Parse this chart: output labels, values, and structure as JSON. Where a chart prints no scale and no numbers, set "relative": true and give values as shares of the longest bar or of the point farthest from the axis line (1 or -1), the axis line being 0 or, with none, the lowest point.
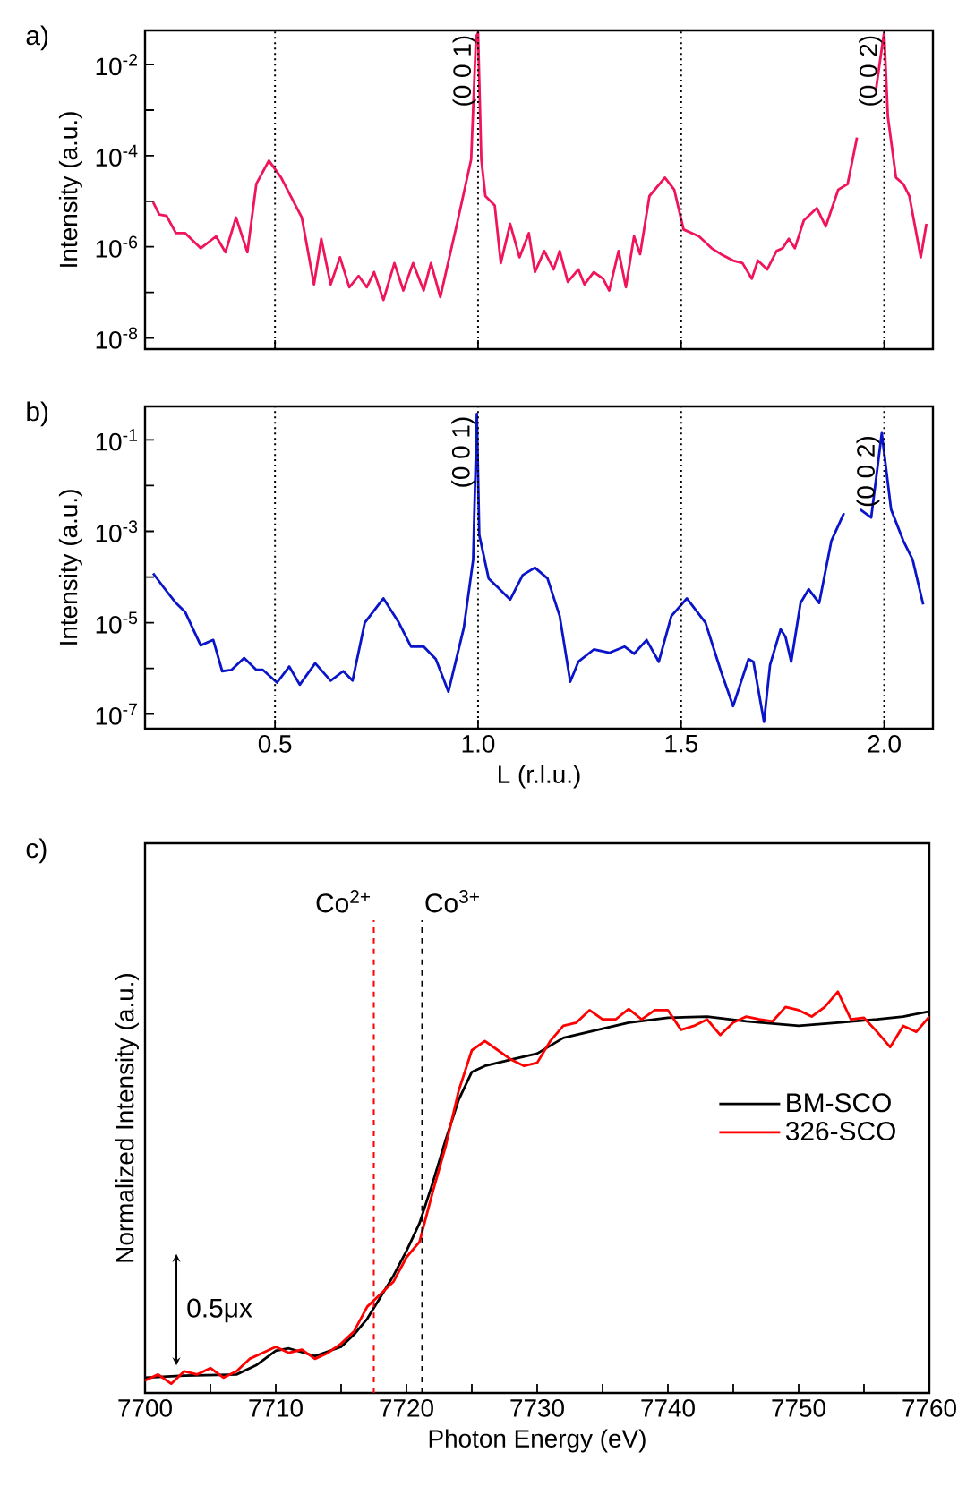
{
  "chart_data": [
    {
      "type": "line",
      "title": "a)",
      "ylabel": "Intensity (a.u.)",
      "log": "y",
      "tick_labels": "y",
      "xlim": [
        0.18,
        2.12
      ],
      "xticks": [
        0.5,
        1,
        1.5,
        2
      ],
      "ylim": [
        5.7e-09,
        0.056
      ],
      "yticks": [
        {
          "value": 0.01,
          "label": "10$^{-2}$"
        },
        {
          "value": 0.001,
          "label": null
        },
        {
          "value": 0.0001,
          "label": "10$^{-4}$"
        },
        {
          "value": 1e-05,
          "label": null
        },
        {
          "value": 1e-06,
          "label": "10$^{-6}$"
        },
        {
          "value": 1e-07,
          "label": null
        },
        {
          "value": 1e-08,
          "label": "10$^{-8}$"
        }
      ],
      "x": [
        0.2,
        0.215,
        0.233,
        0.256,
        0.279,
        0.317,
        0.355,
        0.378,
        0.404,
        0.432,
        0.454,
        0.485,
        0.515,
        0.566,
        0.596,
        0.614,
        0.637,
        0.66,
        0.683,
        0.706,
        0.726,
        0.744,
        0.767,
        0.794,
        0.816,
        0.84,
        0.866,
        0.884,
        0.907,
        0.95,
        0.983,
        0.995,
        1.0,
        1.008,
        1.018,
        1.041,
        1.056,
        1.079,
        1.102,
        1.125,
        1.14,
        1.163,
        1.186,
        1.201,
        1.221,
        1.247,
        1.262,
        1.285,
        1.308,
        1.323,
        1.346,
        1.364,
        1.384,
        1.399,
        1.422,
        1.46,
        1.483,
        1.506,
        1.544,
        1.575,
        1.598,
        1.628,
        1.651,
        1.674,
        1.689,
        1.712,
        1.735,
        1.75,
        1.765,
        1.78,
        1.802,
        1.834,
        1.856,
        1.887,
        1.91,
        1.933,
        1.956,
        1.979,
        1.998,
        2.0,
        2.009,
        2.029,
        2.047,
        2.062,
        2.09,
        2.104
      ],
      "series": [
        {
          "color": "#f0145a",
          "values": [
            9.5e-06,
            5.1e-06,
            4.8e-06,
            2e-06,
            2e-06,
            9.3e-07,
            1.7e-06,
            7.6e-07,
            4.4e-06,
            7.6e-07,
            2.4e-05,
            7.8e-05,
            3.3e-05,
            4.4e-06,
            1.5e-07,
            1.5e-06,
            1.5e-07,
            5.9e-07,
            1.3e-07,
            2.3e-07,
            1.3e-07,
            2.8e-07,
            6.8e-08,
            4.4e-07,
            1.1e-07,
            4.4e-07,
            1.1e-07,
            4.4e-07,
            7.9e-08,
            3.8e-06,
            8.3e-05,
            0.04,
            0.05,
            8.3e-05,
            1.3e-05,
            8.1e-06,
            4.4e-07,
            3.2e-06,
            5.9e-07,
            2e-06,
            2.8e-07,
            8.1e-07,
            3.2e-07,
            8.1e-07,
            1.7e-07,
            3.2e-07,
            1.5e-07,
            2.8e-07,
            2e-07,
            1.1e-07,
            8.1e-07,
            1.3e-07,
            1.7e-06,
            6.9e-07,
            1.3e-05,
            3.3e-05,
            1.8e-05,
            2.4e-06,
            1.7e-06,
            9.3e-07,
            6.9e-07,
            5e-07,
            4.4e-07,
            2e-07,
            5e-07,
            3.2e-07,
            8.1e-07,
            9.3e-07,
            1.5e-06,
            9.3e-07,
            3.8e-06,
            7.1e-06,
            2.8e-06,
            1.8e-05,
            2.4e-05,
            0.00025,
            null,
            0.0025,
            0.04,
            0.05,
            0.00072,
            3.3e-05,
            2.4e-05,
            1.3e-05,
            5.9e-07,
            3.2e-06
          ]
        }
      ],
      "ref_lines": [
        {
          "axis": "x",
          "value": 0.5,
          "color": "#000000",
          "line_style": "dotted"
        },
        {
          "axis": "x",
          "value": 1,
          "color": "#000000",
          "line_style": "dotted"
        },
        {
          "axis": "x",
          "value": 1.5,
          "color": "#000000",
          "line_style": "dotted"
        },
        {
          "axis": "x",
          "value": 2,
          "color": "#000000",
          "line_style": "dotted"
        }
      ],
      "annotations": [
        {
          "text": "(0 0 1)",
          "x": 1.0,
          "y": 0.05
        },
        {
          "text": "(0 0 2)",
          "x": 2.0,
          "y": 0.05
        }
      ]
    },
    {
      "type": "line",
      "title": "b)",
      "xlabel": "L (r.l.u.)",
      "ylabel": "Intensity (a.u.)",
      "log": "y",
      "xlim": [
        0.18,
        2.12
      ],
      "xticks": [
        0.5,
        {
          "value": 1,
          "label": "1.0"
        },
        1.5,
        {
          "value": 2,
          "label": "2.0"
        }
      ],
      "ylim": [
        4.8e-08,
        0.54
      ],
      "yticks": [
        {
          "value": 0.1,
          "label": "10$^{-1}$"
        },
        {
          "value": 0.01,
          "label": null
        },
        {
          "value": 0.001,
          "label": "10$^{-3}$"
        },
        {
          "value": 0.0001,
          "label": null
        },
        {
          "value": 1e-05,
          "label": "10$^{-5}$"
        },
        {
          "value": 1e-06,
          "label": null
        },
        {
          "value": 1e-07,
          "label": "10$^{-7}$"
        }
      ],
      "x": [
        0.2,
        0.226,
        0.256,
        0.279,
        0.317,
        0.348,
        0.37,
        0.393,
        0.424,
        0.454,
        0.47,
        0.505,
        0.535,
        0.561,
        0.599,
        0.637,
        0.668,
        0.691,
        0.721,
        0.767,
        0.805,
        0.835,
        0.866,
        0.896,
        0.927,
        0.965,
        0.988,
        0.997,
        1.003,
        1.026,
        1.049,
        1.079,
        1.11,
        1.14,
        1.171,
        1.201,
        1.227,
        1.247,
        1.285,
        1.323,
        1.361,
        1.384,
        1.415,
        1.445,
        1.476,
        1.514,
        1.56,
        1.598,
        1.628,
        1.666,
        1.678,
        1.704,
        1.719,
        1.745,
        1.757,
        1.771,
        1.794,
        1.814,
        1.84,
        1.87,
        1.901,
        1.921,
        1.941,
        1.968,
        1.994,
        2.017,
        2.047,
        2.07,
        2.096
      ],
      "series": [
        {
          "color": "#0a14c8",
          "values": [
            0.00012,
            5.9e-05,
            2.7e-05,
            1.7e-05,
            3.2e-06,
            4.2e-06,
            8.7e-07,
            9.3e-07,
            1.7e-06,
            9.3e-07,
            9.3e-07,
            4.9e-07,
            1.1e-06,
            4.4e-07,
            1.3e-06,
            5.4e-07,
            8.7e-07,
            5.4e-07,
            1e-05,
            3.4e-05,
            1e-05,
            3e-06,
            3e-06,
            1.6e-06,
            3.1e-07,
            7.8e-06,
            0.00024,
            0.37,
            0.00083,
            9.3e-05,
            5.9e-05,
            3.2e-05,
            0.00011,
            0.00016,
            9.3e-05,
            1.4e-05,
            5.1e-07,
            1.4e-06,
            2.6e-06,
            2.2e-06,
            3e-06,
            2.1e-06,
            4.2e-06,
            1.4e-06,
            1.4e-05,
            3.4e-05,
            1e-05,
            8.7e-07,
            1.5e-07,
            1.6e-06,
            1.4e-06,
            6.8e-08,
            1.2e-06,
            7.2e-06,
            4.9e-06,
            1.4e-06,
            2.7e-05,
            5.4e-05,
            2.7e-05,
            0.00062,
            0.0025,
            null,
            0.003,
            0.002,
            0.14,
            0.003,
            0.00062,
            0.00024,
            2.5e-05
          ]
        }
      ],
      "ref_lines": [
        {
          "axis": "x",
          "value": 0.5,
          "color": "#000000",
          "line_style": "dotted"
        },
        {
          "axis": "x",
          "value": 1,
          "color": "#000000",
          "line_style": "dotted"
        },
        {
          "axis": "x",
          "value": 1.5,
          "color": "#000000",
          "line_style": "dotted"
        },
        {
          "axis": "x",
          "value": 2,
          "color": "#000000",
          "line_style": "dotted"
        }
      ],
      "annotations": [
        {
          "text": "(0 0 1)",
          "x": 0.997,
          "y": 0.37
        },
        {
          "text": "(0 0 2)",
          "x": 1.994,
          "y": 0.14
        }
      ]
    },
    {
      "type": "line",
      "title": "c)",
      "xlabel": "Photon Energy (eV)",
      "ylabel": "Normalized Intensity (a.u.)",
      "relative": true,
      "legend": "right",
      "xlim": [
        7700,
        7760
      ],
      "xticks": [
        7700,
        {
          "value": 7705,
          "label": null
        },
        7710,
        {
          "value": 7715,
          "label": null
        },
        7720,
        {
          "value": 7725,
          "label": null
        },
        7730,
        {
          "value": 7735,
          "label": null
        },
        7740,
        {
          "value": 7745,
          "label": null
        },
        7750,
        {
          "value": 7755,
          "label": null
        },
        7760
      ],
      "series": [
        {
          "name": "BM-SCO",
          "color": "#000000",
          "x": [
            7700,
            7703,
            7707,
            7708.5,
            7710,
            7711,
            7713,
            7715,
            7716,
            7717,
            7718,
            7719,
            7720,
            7721,
            7722,
            7723,
            7724,
            7725,
            7726,
            7728,
            7730,
            7732,
            7735,
            7737,
            7740,
            7743,
            7746,
            7750,
            7753,
            7756,
            7758,
            7760
          ],
          "values": [
            0.038,
            0.043,
            0.046,
            0.069,
            0.105,
            0.111,
            0.092,
            0.115,
            0.146,
            0.185,
            0.238,
            0.292,
            0.354,
            0.423,
            0.523,
            0.631,
            0.731,
            0.8,
            0.815,
            0.831,
            0.846,
            0.885,
            0.908,
            0.923,
            0.935,
            0.938,
            0.926,
            0.915,
            0.923,
            0.931,
            0.938,
            0.951
          ]
        },
        {
          "name": "326-SCO",
          "color": "#ff0000",
          "x": [
            7700,
            7701,
            7702,
            7703,
            7704,
            7705,
            7706,
            7707,
            7708,
            7709,
            7710,
            7711,
            7712,
            7713,
            7714,
            7715,
            7716,
            7717,
            7718,
            7719,
            7720,
            7721,
            7722,
            7723,
            7724,
            7725,
            7726,
            7727,
            7728,
            7729,
            7730,
            7731,
            7732,
            7733,
            7734,
            7735,
            7736,
            7737,
            7738,
            7739,
            7740,
            7741,
            7742,
            7743,
            7744,
            7745,
            7746,
            7747,
            7748,
            7749,
            7750,
            7751,
            7752,
            7753,
            7754,
            7755,
            7756,
            7757,
            7758,
            7759,
            7760
          ],
          "values": [
            0.031,
            0.046,
            0.023,
            0.054,
            0.046,
            0.062,
            0.038,
            0.054,
            0.085,
            0.1,
            0.115,
            0.1,
            0.108,
            0.085,
            0.1,
            0.123,
            0.154,
            0.215,
            0.246,
            0.277,
            0.338,
            0.377,
            0.5,
            0.615,
            0.754,
            0.854,
            0.877,
            0.854,
            0.831,
            0.815,
            0.823,
            0.877,
            0.915,
            0.923,
            0.954,
            0.931,
            0.931,
            0.957,
            0.931,
            0.954,
            0.954,
            0.905,
            0.915,
            0.931,
            0.892,
            0.923,
            0.938,
            0.931,
            0.926,
            0.962,
            0.954,
            0.938,
            0.962,
            1.0,
            0.931,
            0.935,
            0.9,
            0.862,
            0.915,
            0.9,
            0.938
          ]
        }
      ],
      "ref_lines": [
        {
          "axis": "x",
          "value": 7717.5,
          "label": "Co$^{2+}$",
          "color": "#ff0000",
          "line_style": "dashed"
        },
        {
          "axis": "x",
          "value": 7721.2,
          "label": "Co$^{3+}$",
          "color": "#000000",
          "line_style": "dashed"
        }
      ],
      "annotations": [
        "0.5μx"
      ]
    }
  ]
}
